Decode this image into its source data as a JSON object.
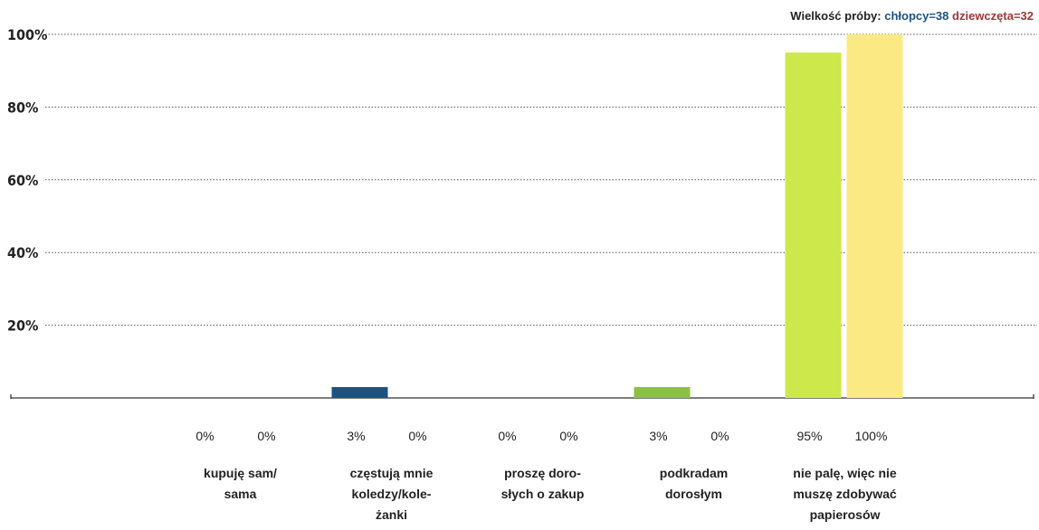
{
  "sample_note": {
    "label": "Wielkość próby:",
    "boys": "chłopcy=38",
    "girls": "dziewczęta=32"
  },
  "colors": {
    "boys_note": "#1b5283",
    "girls_note": "#a23434",
    "grid": "#555555",
    "axis": "#333333",
    "text": "#222222"
  },
  "chart_data": {
    "type": "bar",
    "title": "",
    "xlabel": "",
    "ylabel": "",
    "ylim": [
      0,
      100
    ],
    "yticks": [
      20,
      40,
      60,
      80,
      100
    ],
    "ytick_labels": [
      "20%",
      "40%",
      "60%",
      "80%",
      "100%"
    ],
    "grid": true,
    "categories": [
      "kupuję sam/\nsama",
      "częstują mnie\nkoledzy/kole-\nżanki",
      "proszę doro-\nsłych o zakup",
      "podkradam\ndorosłym",
      "nie palę, więc nie\nmuszę zdobywać\npapierosów"
    ],
    "series": [
      {
        "values": [
          0,
          3,
          0,
          3,
          95
        ],
        "value_labels": [
          "0%",
          "3%",
          "0%",
          "3%",
          "95%"
        ],
        "colors": [
          "#1b5283",
          "#1b5283",
          "#1b5283",
          "#8bc043",
          "#cde84a"
        ]
      },
      {
        "values": [
          0,
          0,
          0,
          0,
          100
        ],
        "value_labels": [
          "0%",
          "0%",
          "0%",
          "0%",
          "100%"
        ],
        "colors": [
          "#f5e27a",
          "#f5e27a",
          "#f5e27a",
          "#f5e27a",
          "#fbe984"
        ]
      }
    ]
  }
}
